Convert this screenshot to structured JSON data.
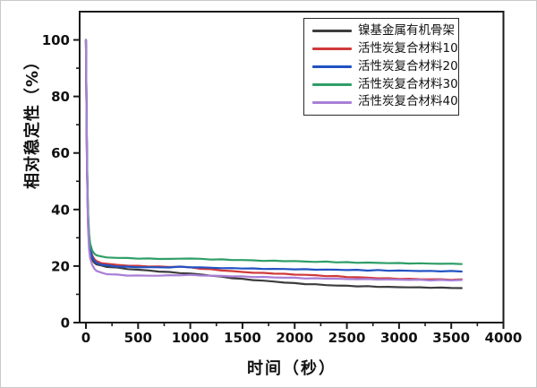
{
  "figure": {
    "background": "#ffffff",
    "border_color": "#c9c9c9",
    "axis_color": "#1a1a1a",
    "tick_label_color": "#111111"
  },
  "chart_data": {
    "type": "line",
    "title": "",
    "xlabel": "时间（秒）",
    "ylabel": "相对稳定性（%）",
    "xlim": [
      -60,
      4000
    ],
    "ylim": [
      0,
      110
    ],
    "x_ticks": [
      0,
      500,
      1000,
      1500,
      2000,
      2500,
      3000,
      3500,
      4000
    ],
    "x_minor_step": 250,
    "y_ticks": [
      0,
      20,
      40,
      60,
      80,
      100
    ],
    "y_minor_step": 10,
    "grid": false,
    "legend_position": "top-right",
    "x": [
      0,
      10,
      20,
      30,
      40,
      60,
      80,
      100,
      150,
      200,
      300,
      400,
      500,
      600,
      700,
      800,
      900,
      1000,
      1100,
      1200,
      1300,
      1400,
      1500,
      1600,
      1700,
      1800,
      1900,
      2000,
      2100,
      2200,
      2300,
      2400,
      2500,
      2600,
      2700,
      2800,
      2900,
      3000,
      3100,
      3200,
      3300,
      3400,
      3500,
      3600
    ],
    "series": [
      {
        "name": "镍基金属有机骨架",
        "color": "#3d3d3d",
        "values": [
          100,
          55,
          36,
          28,
          24.5,
          22.2,
          21.2,
          20.6,
          20.1,
          19.8,
          19.4,
          19.0,
          18.7,
          18.4,
          18.1,
          17.8,
          17.6,
          17.3,
          17.0,
          16.6,
          16.2,
          15.8,
          15.4,
          15.1,
          14.8,
          14.5,
          14.2,
          13.9,
          13.7,
          13.5,
          13.3,
          13.1,
          13.0,
          12.9,
          12.8,
          12.7,
          12.6,
          12.5,
          12.5,
          12.4,
          12.4,
          12.3,
          12.3,
          12.2
        ]
      },
      {
        "name": "活性炭复合材料10",
        "color": "#d03a3a",
        "values": [
          100,
          57,
          38,
          30,
          26.5,
          23.8,
          22.5,
          21.8,
          21.1,
          20.8,
          20.4,
          20.2,
          20.0,
          19.9,
          19.8,
          19.7,
          19.8,
          19.5,
          19.1,
          18.8,
          18.5,
          18.2,
          17.9,
          17.7,
          17.5,
          17.4,
          17.2,
          17.0,
          16.9,
          16.7,
          16.5,
          16.4,
          16.2,
          16.0,
          15.9,
          15.7,
          15.6,
          15.5,
          15.4,
          15.4,
          15.3,
          15.3,
          15.2,
          15.2
        ]
      },
      {
        "name": "活性炭复合材料20",
        "color": "#2152c3",
        "values": [
          100,
          56,
          37,
          29,
          25.8,
          23.2,
          21.9,
          21.1,
          20.5,
          20.2,
          19.9,
          19.7,
          19.6,
          19.6,
          19.5,
          19.6,
          19.7,
          19.6,
          19.5,
          19.4,
          19.3,
          19.2,
          19.2,
          19.1,
          19.0,
          19.0,
          18.9,
          18.9,
          18.8,
          18.8,
          18.7,
          18.7,
          18.6,
          18.6,
          18.5,
          18.5,
          18.4,
          18.4,
          18.3,
          18.3,
          18.2,
          18.2,
          18.2,
          18.1
        ]
      },
      {
        "name": "活性炭复合材料30",
        "color": "#2f9e68",
        "values": [
          100,
          58,
          39.5,
          31.5,
          28,
          25.5,
          24.4,
          23.8,
          23.3,
          23.1,
          22.9,
          22.8,
          22.7,
          22.6,
          22.6,
          22.5,
          22.6,
          22.7,
          22.5,
          22.4,
          22.3,
          22.2,
          22.1,
          22.0,
          21.9,
          21.8,
          21.8,
          21.7,
          21.6,
          21.5,
          21.5,
          21.4,
          21.3,
          21.2,
          21.2,
          21.1,
          21.1,
          21.0,
          21.0,
          20.9,
          20.9,
          20.8,
          20.8,
          20.8
        ]
      },
      {
        "name": "活性炭复合材料40",
        "color": "#a97fd6",
        "values": [
          100,
          54,
          34,
          26,
          22.8,
          20.4,
          19.1,
          18.3,
          17.6,
          17.2,
          16.9,
          16.7,
          16.6,
          16.6,
          16.6,
          16.7,
          16.8,
          16.8,
          16.7,
          16.6,
          16.5,
          16.4,
          16.3,
          16.2,
          16.1,
          16.0,
          15.9,
          15.8,
          15.7,
          15.6,
          15.6,
          15.5,
          15.4,
          15.4,
          15.3,
          15.3,
          15.2,
          15.2,
          15.1,
          15.1,
          15.0,
          15.0,
          15.0,
          15.0
        ]
      }
    ]
  }
}
